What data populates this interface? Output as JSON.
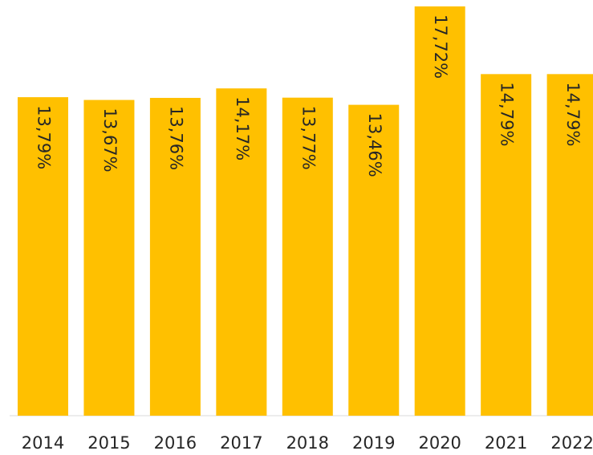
{
  "chart_data": {
    "type": "bar",
    "categories": [
      "2014",
      "2015",
      "2016",
      "2017",
      "2018",
      "2019",
      "2020",
      "2021",
      "2022"
    ],
    "values": [
      13.79,
      13.67,
      13.76,
      14.17,
      13.77,
      13.46,
      17.72,
      14.79,
      14.79
    ],
    "value_labels": [
      "13,79%",
      "13,67%",
      "13,76%",
      "14,17%",
      "13,77%",
      "13,46%",
      "17,72%",
      "14,79%",
      "14,79%"
    ],
    "color": "#FFC000"
  }
}
